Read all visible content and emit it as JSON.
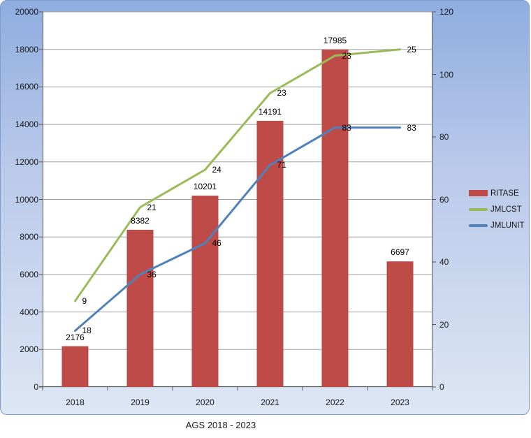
{
  "chart": {
    "title": "AGS 2018 - 2023",
    "frame": {
      "bg_top": "#8fade0",
      "bg_bottom": "#dde6f4",
      "border": "#7f9ccd"
    },
    "plot": {
      "bg": "#ffffff",
      "grid_color": "#a0a0a0",
      "axis_color": "#595959"
    },
    "legend": [
      {
        "label": "RITASE",
        "color": "#be4b48",
        "swatch": "rect"
      },
      {
        "label": "JMLCST",
        "color": "#9bbb59",
        "swatch": "line"
      },
      {
        "label": "JMLUNIT",
        "color": "#4f81bd",
        "swatch": "line"
      }
    ]
  },
  "chart_data": {
    "type": "combo-bar-line",
    "title": "AGS 2018 - 2023",
    "categories": [
      "2018",
      "2019",
      "2020",
      "2021",
      "2022",
      "2023"
    ],
    "series": [
      {
        "name": "RITASE",
        "type": "bar",
        "axis": "left",
        "color": "#be4b48",
        "values": [
          2176,
          8382,
          10201,
          14191,
          17985,
          6697
        ],
        "data_labels": [
          "2176",
          "8382",
          "10201",
          "14191",
          "17985",
          "6697"
        ]
      },
      {
        "name": "JMLCST",
        "type": "line",
        "axis": "right",
        "color": "#9bbb59",
        "data_labels": [
          "9",
          "21",
          "24",
          "23",
          "23",
          "25"
        ],
        "plotted_right_axis_values": [
          27.5,
          57.5,
          69.5,
          94,
          106,
          108
        ]
      },
      {
        "name": "JMLUNIT",
        "type": "line",
        "axis": "right",
        "color": "#4f81bd",
        "values": [
          18,
          36,
          46,
          71,
          83,
          83
        ],
        "data_labels": [
          "18",
          "36",
          "46",
          "71",
          "83",
          "83"
        ],
        "plotted_right_axis_values": [
          18,
          36,
          46,
          71,
          83,
          83
        ]
      }
    ],
    "left_axis": {
      "min": 0,
      "max": 20000,
      "step": 2000,
      "ticks": [
        "0",
        "2000",
        "4000",
        "6000",
        "8000",
        "10000",
        "12000",
        "14000",
        "16000",
        "18000",
        "20000"
      ]
    },
    "right_axis": {
      "min": 0,
      "max": 120,
      "step": 20,
      "ticks": [
        "0",
        "20",
        "40",
        "60",
        "80",
        "100",
        "120"
      ]
    },
    "legend_position": "middle-right",
    "grid": "horizontal"
  }
}
